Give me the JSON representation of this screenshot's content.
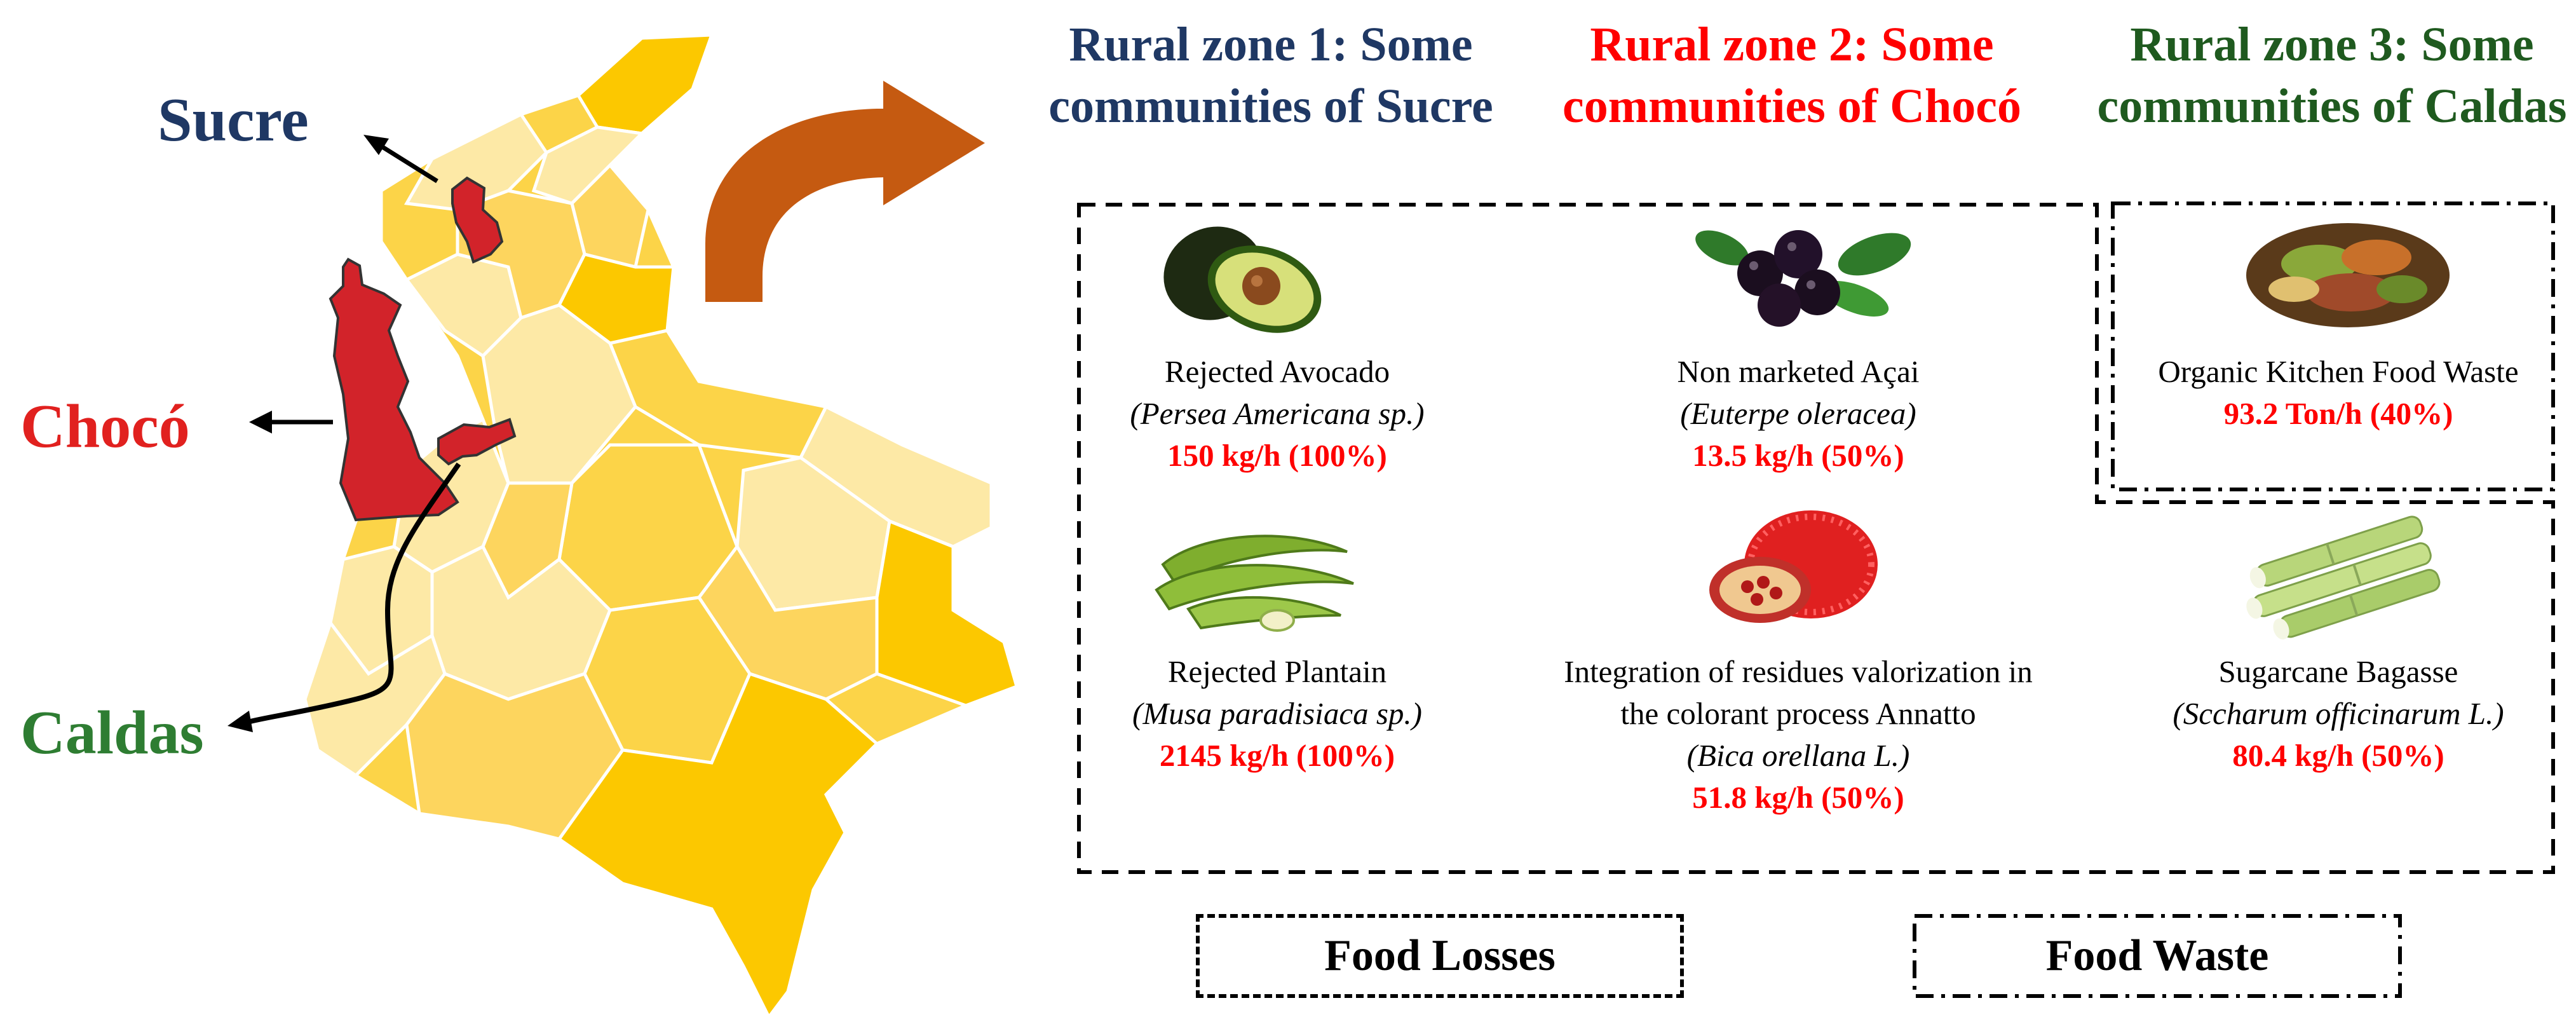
{
  "map": {
    "regions": [
      {
        "name": "Sucre",
        "color": "#1f3864"
      },
      {
        "name": "Chocó",
        "color": "#e1211f"
      },
      {
        "name": "Caldas",
        "color": "#2e7d32"
      }
    ],
    "highlight_color": "#d2232a"
  },
  "zones": [
    {
      "title": "Rural zone 1: Some communities of Sucre",
      "color": "#1f3864"
    },
    {
      "title": "Rural zone 2: Some communities of Chocó",
      "color": "#ff0000"
    },
    {
      "title": "Rural zone 3: Some communities of Caldas",
      "color": "#1f5a1f"
    }
  ],
  "items": [
    {
      "name": "Rejected Avocado",
      "scientific": "(Persea Americana sp.)",
      "amount": "150 kg/h (100%)",
      "icon": "avocado-icon"
    },
    {
      "name": "Non marketed Açai",
      "scientific": "(Euterpe oleracea)",
      "amount": "13.5 kg/h (50%)",
      "icon": "acai-icon"
    },
    {
      "name": "Organic Kitchen Food Waste",
      "scientific": "",
      "amount": "93.2 Ton/h (40%)",
      "icon": "food-waste-icon"
    },
    {
      "name": "Rejected Plantain",
      "scientific": "(Musa paradisiaca sp.)",
      "amount": "2145 kg/h (100%)",
      "icon": "plantain-icon"
    },
    {
      "name": "Integration of residues valorization in the colorant process Annatto",
      "scientific": "(Bica orellana L.)",
      "amount": "51.8 kg/h (50%)",
      "icon": "annatto-icon"
    },
    {
      "name": "Sugarcane Bagasse",
      "scientific": "(Sccharum officinarum L.)",
      "amount": "80.4 kg/h (50%)",
      "icon": "sugarcane-icon"
    }
  ],
  "legend": {
    "food_losses": "Food Losses",
    "food_waste": "Food Waste"
  },
  "colors": {
    "arrow": "#c55a11",
    "map_fill_light": "#fde9a6",
    "map_fill_mid": "#fdd55e",
    "map_fill_dark": "#fcc800"
  }
}
